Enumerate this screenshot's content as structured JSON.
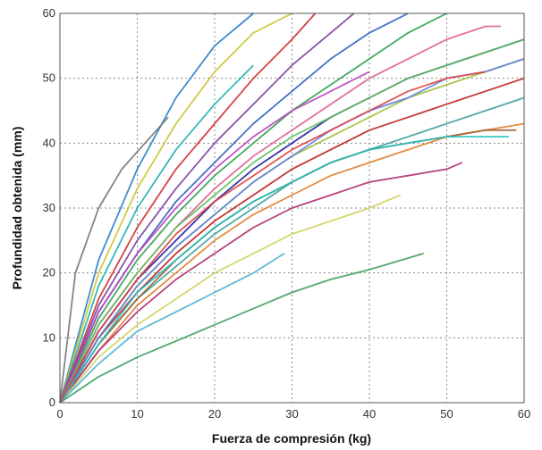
{
  "chart_data": {
    "type": "line",
    "title": "",
    "xlabel": "Fuerza de compresión (kg)",
    "ylabel": "Profundidad obtenida (mm)",
    "xlim": [
      0,
      60
    ],
    "ylim": [
      0,
      60
    ],
    "xticks": [
      0,
      10,
      20,
      30,
      40,
      50,
      60
    ],
    "yticks": [
      0,
      10,
      20,
      30,
      40,
      50,
      60
    ],
    "grid": "on, dashed",
    "legend": "none",
    "series": [
      {
        "color": "#2b7fc8",
        "x": [
          0,
          5,
          10,
          15,
          20,
          25
        ],
        "y": [
          0,
          22,
          36,
          47,
          55,
          60
        ]
      },
      {
        "color": "#c8c830",
        "x": [
          0,
          5,
          10,
          15,
          20,
          25,
          30
        ],
        "y": [
          0,
          20,
          33,
          43,
          51,
          57,
          60
        ]
      },
      {
        "color": "#777777",
        "x": [
          0,
          2,
          5,
          8,
          11,
          14
        ],
        "y": [
          0,
          20,
          30,
          36,
          40,
          44
        ]
      },
      {
        "color": "#20b0b0",
        "x": [
          0,
          5,
          10,
          15,
          20,
          25
        ],
        "y": [
          0,
          18,
          30,
          39,
          46,
          52
        ]
      },
      {
        "color": "#d03030",
        "x": [
          0,
          5,
          10,
          15,
          20,
          25,
          30,
          33
        ],
        "y": [
          0,
          16,
          27,
          36,
          43,
          50,
          56,
          60
        ]
      },
      {
        "color": "#8040a0",
        "x": [
          0,
          5,
          10,
          15,
          20,
          25,
          30,
          35,
          38
        ],
        "y": [
          0,
          15,
          25,
          33,
          40,
          46,
          52,
          57,
          60
        ]
      },
      {
        "color": "#3060c0",
        "x": [
          0,
          5,
          10,
          15,
          20,
          25,
          30,
          35,
          40,
          45
        ],
        "y": [
          0,
          14,
          23,
          31,
          37,
          43,
          48,
          53,
          57,
          60
        ]
      },
      {
        "color": "#30a050",
        "x": [
          0,
          5,
          10,
          15,
          20,
          25,
          30,
          35,
          40,
          45,
          50
        ],
        "y": [
          0,
          13,
          22,
          29,
          35,
          40,
          45,
          49,
          53,
          57,
          60
        ]
      },
      {
        "color": "#e06090",
        "x": [
          0,
          5,
          10,
          15,
          20,
          25,
          30,
          35,
          40,
          45,
          50,
          55,
          57
        ],
        "y": [
          0,
          12,
          20,
          27,
          33,
          38,
          42,
          46,
          50,
          53,
          56,
          58,
          58
        ]
      },
      {
        "color": "#2020a0",
        "x": [
          0,
          5,
          10,
          15,
          20,
          25,
          30,
          35,
          40,
          45,
          50,
          55,
          60
        ],
        "y": [
          0,
          11,
          19,
          25,
          31,
          36,
          40,
          44,
          47,
          50,
          52,
          54,
          56
        ]
      },
      {
        "color": "#a0c040",
        "x": [
          0,
          5,
          10,
          15,
          20,
          25,
          30,
          35,
          40,
          45,
          50,
          55,
          60
        ],
        "y": [
          0,
          10,
          18,
          24,
          29,
          34,
          38,
          41,
          44,
          47,
          49,
          51,
          53
        ]
      },
      {
        "color": "#c02020",
        "x": [
          0,
          5,
          10,
          15,
          20,
          25,
          30,
          35,
          40,
          45,
          50,
          55,
          60
        ],
        "y": [
          0,
          10,
          17,
          23,
          28,
          32,
          36,
          39,
          42,
          44,
          46,
          48,
          50
        ]
      },
      {
        "color": "#40a0a0",
        "x": [
          0,
          5,
          10,
          15,
          20,
          25,
          30,
          35,
          40,
          45,
          50,
          55,
          60
        ],
        "y": [
          0,
          9,
          16,
          21,
          26,
          30,
          34,
          37,
          39,
          41,
          43,
          45,
          47
        ]
      },
      {
        "color": "#e08030",
        "x": [
          0,
          5,
          10,
          15,
          20,
          25,
          30,
          35,
          40,
          45,
          50,
          55,
          60
        ],
        "y": [
          0,
          8,
          15,
          20,
          25,
          29,
          32,
          35,
          37,
          39,
          41,
          42,
          43
        ]
      },
      {
        "color": "#b03070",
        "x": [
          0,
          5,
          10,
          15,
          20,
          25,
          30,
          35,
          40,
          45,
          50,
          52
        ],
        "y": [
          0,
          8,
          14,
          19,
          23,
          27,
          30,
          32,
          34,
          35,
          36,
          37
        ]
      },
      {
        "color": "#d0d060",
        "x": [
          0,
          5,
          10,
          15,
          20,
          25,
          30,
          35,
          40,
          44
        ],
        "y": [
          0,
          7,
          12,
          16,
          20,
          23,
          26,
          28,
          30,
          32
        ]
      },
      {
        "color": "#50b0d0",
        "x": [
          0,
          5,
          10,
          15,
          20,
          25,
          29
        ],
        "y": [
          0,
          6,
          11,
          14,
          17,
          20,
          23
        ]
      },
      {
        "color": "#40a060",
        "x": [
          0,
          5,
          10,
          15,
          20,
          25,
          30,
          35,
          40,
          47
        ],
        "y": [
          0,
          4,
          7,
          9.5,
          12,
          14.5,
          17,
          19,
          20.5,
          23
        ]
      },
      {
        "color": "#c040c0",
        "x": [
          0,
          5,
          10,
          15,
          20,
          25,
          30,
          35,
          40
        ],
        "y": [
          0,
          14,
          23,
          30,
          36,
          41,
          45,
          48,
          51
        ]
      },
      {
        "color": "#60c060",
        "x": [
          0,
          5,
          10,
          15,
          20,
          25,
          30,
          35,
          40,
          45,
          50,
          55,
          60
        ],
        "y": [
          0,
          12,
          20,
          27,
          32,
          37,
          41,
          44,
          47,
          50,
          52,
          54,
          56
        ]
      },
      {
        "color": "#a06030",
        "x": [
          0,
          5,
          10,
          15,
          20,
          25,
          30,
          35,
          40,
          45,
          50,
          55,
          59
        ],
        "y": [
          0,
          9,
          16,
          22,
          27,
          31,
          34,
          37,
          39,
          40,
          41,
          42,
          42
        ]
      },
      {
        "color": "#6080e0",
        "x": [
          0,
          5,
          10,
          15,
          20,
          25,
          30,
          35,
          40,
          45,
          50,
          55,
          60
        ],
        "y": [
          0,
          10,
          18,
          24,
          29,
          34,
          38,
          42,
          45,
          47,
          50,
          51,
          53
        ]
      },
      {
        "color": "#20c0c0",
        "x": [
          0,
          5,
          10,
          15,
          20,
          25,
          30,
          35,
          40,
          45,
          50,
          55,
          58
        ],
        "y": [
          0,
          9,
          17,
          22,
          27,
          31,
          34,
          37,
          39,
          40,
          41,
          41,
          41
        ]
      },
      {
        "color": "#e04040",
        "x": [
          0,
          5,
          10,
          15,
          20,
          25,
          30,
          35,
          40,
          45,
          50,
          55
        ],
        "y": [
          0,
          11,
          19,
          26,
          31,
          35,
          39,
          42,
          45,
          48,
          50,
          51
        ]
      }
    ]
  }
}
